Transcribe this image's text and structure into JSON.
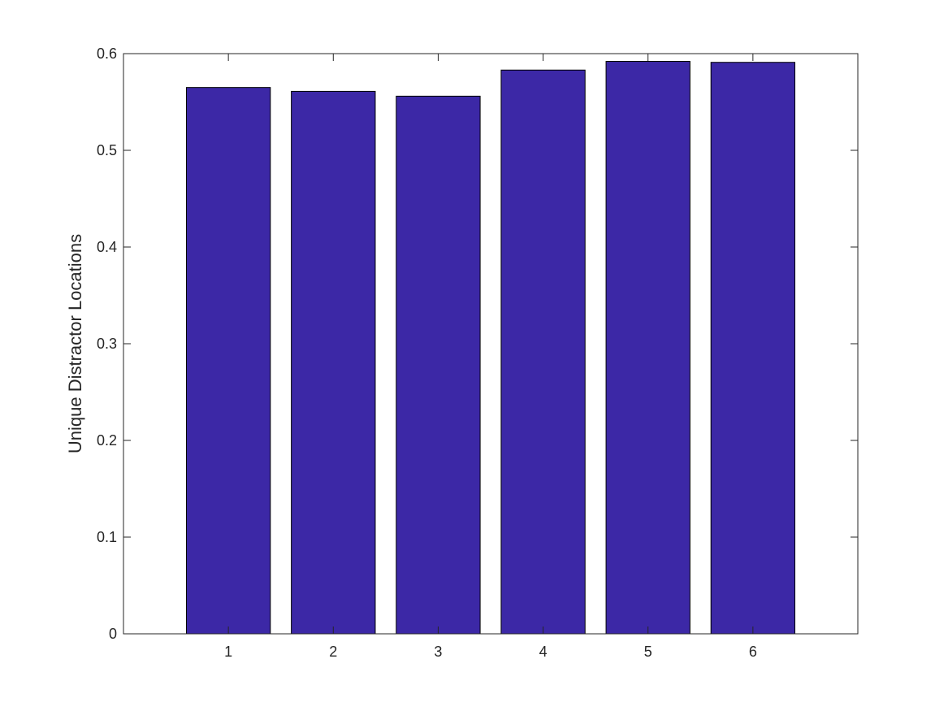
{
  "chart_data": {
    "type": "bar",
    "categories": [
      "1",
      "2",
      "3",
      "4",
      "5",
      "6"
    ],
    "values": [
      0.565,
      0.561,
      0.556,
      0.583,
      0.592,
      0.591
    ],
    "xlabel": "",
    "ylabel": "Unique Distractor Locations",
    "ylim": [
      0,
      0.6
    ],
    "xlim": [
      0,
      7
    ],
    "yticks": [
      "0",
      "0.1",
      "0.2",
      "0.3",
      "0.4",
      "0.5",
      "0.6"
    ],
    "grid": false,
    "legend": "none",
    "colors": {
      "bar_fill": "#3c28a6",
      "bar_edge": "#000000",
      "axis": "#262626",
      "background": "#ffffff"
    }
  }
}
